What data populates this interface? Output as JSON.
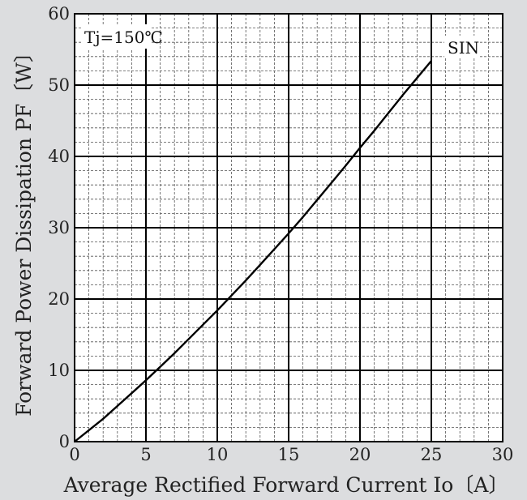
{
  "chart_data": {
    "type": "line",
    "title": "",
    "xlabel": "Average Rectified Forward Current  Io〔A〕",
    "ylabel": "Forward Power Dissipation  PF〔W〕",
    "xlim": [
      0,
      30
    ],
    "ylim": [
      0,
      60
    ],
    "xticks": [
      "0",
      "5",
      "10",
      "15",
      "20",
      "25",
      "30"
    ],
    "yticks": [
      "0",
      "10",
      "20",
      "30",
      "40",
      "50",
      "60"
    ],
    "grid": {
      "major": true,
      "minor": true,
      "minor_style": "dashed"
    },
    "annotations": {
      "condition": "Tj=150℃",
      "series_label": "SIN"
    },
    "series": [
      {
        "name": "SIN",
        "color": "#000000",
        "x": [
          0,
          1,
          2,
          3,
          4,
          5,
          6,
          7,
          8,
          9,
          10,
          11,
          12,
          13,
          14,
          15,
          16,
          17,
          18,
          19,
          20,
          21,
          22,
          23,
          24,
          25
        ],
        "y": [
          0,
          1.6,
          3.2,
          5,
          6.8,
          8.6,
          10.5,
          12.4,
          14.4,
          16.4,
          18.4,
          20.5,
          22.6,
          24.8,
          27,
          29.2,
          31.5,
          33.9,
          36.3,
          38.7,
          41.2,
          43.6,
          46.1,
          48.6,
          51,
          53.4
        ]
      }
    ]
  }
}
